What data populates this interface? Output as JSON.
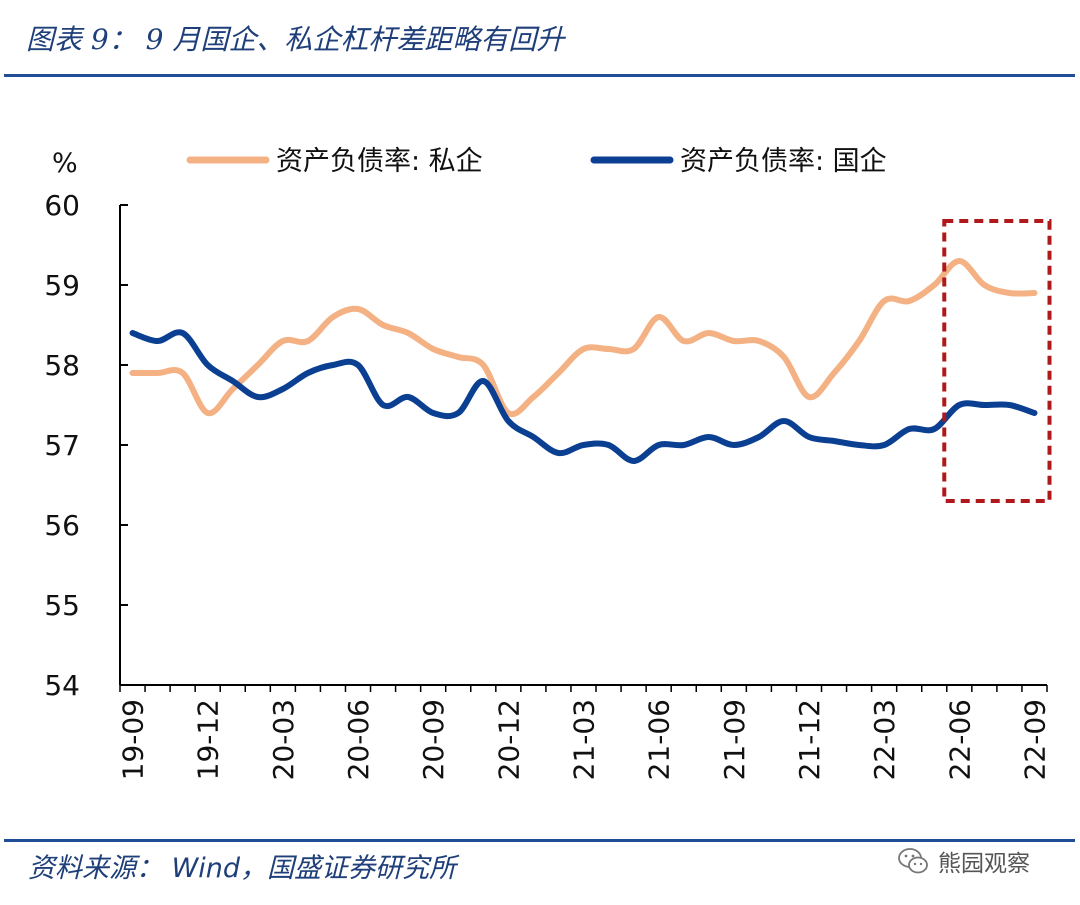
{
  "header": {
    "title": "图表 9： 9 月国企、私企杠杆差距略有回升"
  },
  "footer": {
    "source": "资料来源： Wind，国盛证券研究所",
    "watermark": "熊园观察",
    "watermark_icon": "wechat-icon"
  },
  "colors": {
    "private": "#f4b183",
    "state": "#0b3f91",
    "highlight_box": "#b0191c",
    "rules": "#1f4e96"
  },
  "chart_data": {
    "type": "line",
    "title": "",
    "ylabel": "%",
    "xlabel": "",
    "ylim": [
      54,
      60
    ],
    "yticks": [
      54,
      55,
      56,
      57,
      58,
      59,
      60
    ],
    "x": [
      "19-09",
      "19-10",
      "19-11",
      "19-12",
      "20-01",
      "20-02",
      "20-03",
      "20-04",
      "20-05",
      "20-06",
      "20-07",
      "20-08",
      "20-09",
      "20-10",
      "20-11",
      "20-12",
      "21-01",
      "21-02",
      "21-03",
      "21-04",
      "21-05",
      "21-06",
      "21-07",
      "21-08",
      "21-09",
      "21-10",
      "21-11",
      "21-12",
      "22-01",
      "22-02",
      "22-03",
      "22-04",
      "22-05",
      "22-06",
      "22-07",
      "22-08",
      "22-09"
    ],
    "xtick_labels": [
      "19-09",
      "19-12",
      "20-03",
      "20-06",
      "20-09",
      "20-12",
      "21-03",
      "21-06",
      "21-09",
      "21-12",
      "22-03",
      "22-06",
      "22-09"
    ],
    "series": [
      {
        "name": "资产负债率: 私企",
        "color": "#f4b183",
        "values": [
          57.9,
          57.9,
          57.9,
          57.4,
          57.7,
          58.0,
          58.3,
          58.3,
          58.6,
          58.7,
          58.5,
          58.4,
          58.2,
          58.1,
          58.0,
          57.4,
          57.6,
          57.9,
          58.2,
          58.2,
          58.2,
          58.6,
          58.3,
          58.4,
          58.3,
          58.3,
          58.1,
          57.6,
          57.9,
          58.3,
          58.8,
          58.8,
          59.0,
          59.3,
          59.0,
          58.9,
          58.9
        ]
      },
      {
        "name": "资产负债率: 国企",
        "color": "#0b3f91",
        "values": [
          58.4,
          58.3,
          58.4,
          58.0,
          57.8,
          57.6,
          57.7,
          57.9,
          58.0,
          58.0,
          57.5,
          57.6,
          57.4,
          57.4,
          57.8,
          57.3,
          57.1,
          56.9,
          57.0,
          57.0,
          56.8,
          57.0,
          57.0,
          57.1,
          57.0,
          57.1,
          57.3,
          57.1,
          57.05,
          57.0,
          57.0,
          57.2,
          57.2,
          57.5,
          57.5,
          57.5,
          57.4
        ]
      }
    ],
    "legend_position": "top",
    "annotations": [
      {
        "type": "dashed-box",
        "x_from": "22-06",
        "x_to": "22-09",
        "y_from": 56.3,
        "y_to": 59.8,
        "color": "#b0191c"
      }
    ]
  }
}
